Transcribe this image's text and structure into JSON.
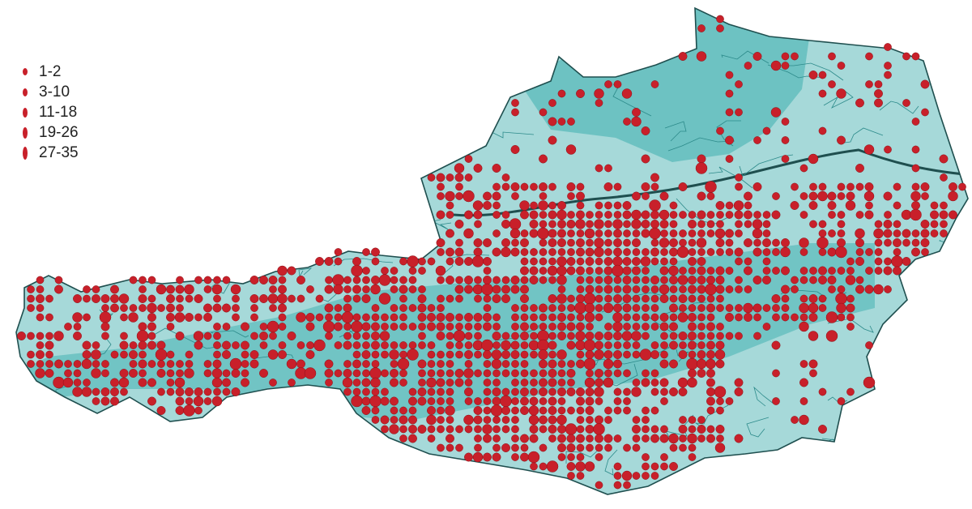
{
  "map": {
    "region": "Austria",
    "colors": {
      "land": "#a6d9d9",
      "land_dark": "#5fbcbc",
      "border": "#1f4f4f",
      "river": "#2c8a8a",
      "dot": "#c8202a",
      "dot_stroke": "#8a1218"
    }
  },
  "legend": {
    "items": [
      {
        "label": "1-2",
        "size": 1
      },
      {
        "label": "3-10",
        "size": 2
      },
      {
        "label": "11-18",
        "size": 3
      },
      {
        "label": "19-26",
        "size": 4
      },
      {
        "label": "27-35",
        "size": 5
      }
    ]
  }
}
